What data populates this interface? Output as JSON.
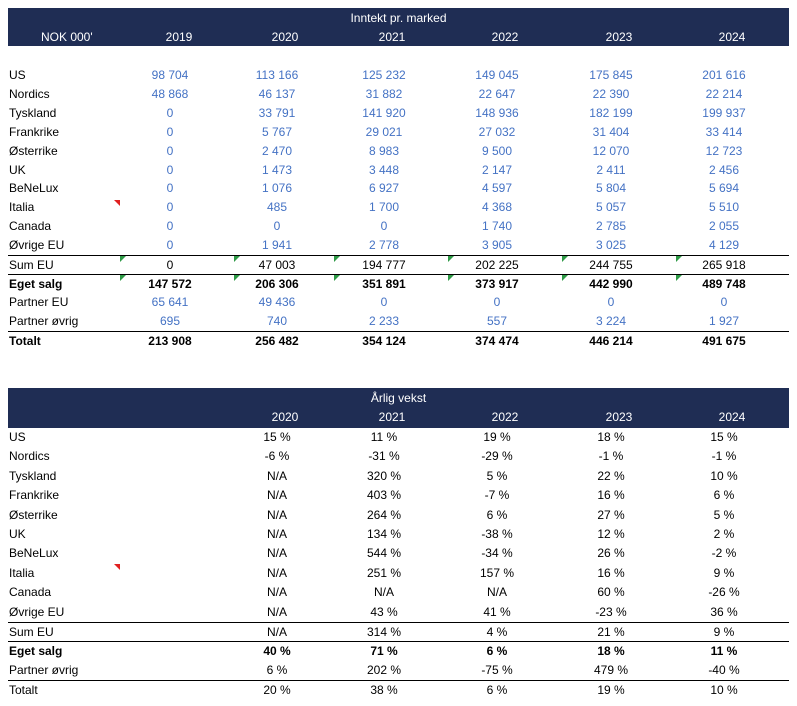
{
  "table1": {
    "title": "Inntekt pr. marked",
    "corner": "NOK 000'",
    "years": [
      "2019",
      "2020",
      "2021",
      "2022",
      "2023",
      "2024"
    ],
    "rows": [
      {
        "label": "US",
        "values": [
          "98 704",
          "113 166",
          "125 232",
          "149 045",
          "175 845",
          "201 616"
        ],
        "style": "blue"
      },
      {
        "label": "Nordics",
        "values": [
          "48 868",
          "46 137",
          "31 882",
          "22 647",
          "22 390",
          "22 214"
        ],
        "style": "blue"
      },
      {
        "label": "Tyskland",
        "values": [
          "0",
          "33 791",
          "141 920",
          "148 936",
          "182 199",
          "199 937"
        ],
        "style": "blue"
      },
      {
        "label": "Frankrike",
        "values": [
          "0",
          "5 767",
          "29 021",
          "27 032",
          "31 404",
          "33 414"
        ],
        "style": "blue"
      },
      {
        "label": "Østerrike",
        "values": [
          "0",
          "2 470",
          "8 983",
          "9 500",
          "12 070",
          "12 723"
        ],
        "style": "blue"
      },
      {
        "label": "UK",
        "values": [
          "0",
          "1 473",
          "3 448",
          "2 147",
          "2 411",
          "2 456"
        ],
        "style": "blue"
      },
      {
        "label": "BeNeLux",
        "values": [
          "0",
          "1 076",
          "6 927",
          "4 597",
          "5 804",
          "5 694"
        ],
        "style": "blue"
      },
      {
        "label": "Italia",
        "values": [
          "0",
          "485",
          "1 700",
          "4 368",
          "5 057",
          "5 510"
        ],
        "style": "blue"
      },
      {
        "label": "Canada",
        "values": [
          "0",
          "0",
          "0",
          "1 740",
          "2 785",
          "2 055"
        ],
        "style": "blue"
      },
      {
        "label": "Øvrige EU",
        "values": [
          "0",
          "1 941",
          "2 778",
          "3 905",
          "3 025",
          "4 129"
        ],
        "style": "blue"
      },
      {
        "label": "Sum EU",
        "values": [
          "0",
          "47 003",
          "194 777",
          "202 225",
          "244 755",
          "265 918"
        ],
        "style": "plain"
      },
      {
        "label": "Eget salg",
        "values": [
          "147 572",
          "206 306",
          "351 891",
          "373 917",
          "442 990",
          "489 748"
        ],
        "style": "bold"
      },
      {
        "label": "Partner EU",
        "values": [
          "65 641",
          "49 436",
          "0",
          "0",
          "0",
          "0"
        ],
        "style": "blue"
      },
      {
        "label": "Partner øvrig",
        "values": [
          "695",
          "740",
          "2 233",
          "557",
          "3 224",
          "1 927"
        ],
        "style": "blue"
      },
      {
        "label": "Totalt",
        "values": [
          "213 908",
          "256 482",
          "354 124",
          "374 474",
          "446 214",
          "491 675"
        ],
        "style": "bold"
      }
    ]
  },
  "table2": {
    "title": "Årlig vekst",
    "years": [
      "2020",
      "2021",
      "2022",
      "2023",
      "2024"
    ],
    "rows": [
      {
        "label": "US",
        "values": [
          "15 %",
          "11 %",
          "19 %",
          "18 %",
          "15 %"
        ],
        "style": "plain"
      },
      {
        "label": "Nordics",
        "values": [
          "-6 %",
          "-31 %",
          "-29 %",
          "-1 %",
          "-1 %"
        ],
        "style": "plain"
      },
      {
        "label": "Tyskland",
        "values": [
          "N/A",
          "320 %",
          "5 %",
          "22 %",
          "10 %"
        ],
        "style": "plain"
      },
      {
        "label": "Frankrike",
        "values": [
          "N/A",
          "403 %",
          "-7 %",
          "16 %",
          "6 %"
        ],
        "style": "plain"
      },
      {
        "label": "Østerrike",
        "values": [
          "N/A",
          "264 %",
          "6 %",
          "27 %",
          "5 %"
        ],
        "style": "plain"
      },
      {
        "label": "UK",
        "values": [
          "N/A",
          "134 %",
          "-38 %",
          "12 %",
          "2 %"
        ],
        "style": "plain"
      },
      {
        "label": "BeNeLux",
        "values": [
          "N/A",
          "544 %",
          "-34 %",
          "26 %",
          "-2 %"
        ],
        "style": "plain"
      },
      {
        "label": "Italia",
        "values": [
          "N/A",
          "251 %",
          "157 %",
          "16 %",
          "9 %"
        ],
        "style": "plain"
      },
      {
        "label": "Canada",
        "values": [
          "N/A",
          "N/A",
          "N/A",
          "60 %",
          "-26 %"
        ],
        "style": "plain"
      },
      {
        "label": "Øvrige EU",
        "values": [
          "N/A",
          "43 %",
          "41 %",
          "-23 %",
          "36 %"
        ],
        "style": "plain"
      },
      {
        "label": "Sum EU",
        "values": [
          "N/A",
          "314 %",
          "4 %",
          "21 %",
          "9 %"
        ],
        "style": "plain"
      },
      {
        "label": "Eget salg",
        "values": [
          "40 %",
          "71 %",
          "6 %",
          "18 %",
          "11 %"
        ],
        "style": "bold"
      },
      {
        "label": "Partner øvrig",
        "values": [
          "6 %",
          "202 %",
          "-75 %",
          "479 %",
          "-40 %"
        ],
        "style": "plain"
      },
      {
        "label": "Totalt",
        "values": [
          "20 %",
          "38 %",
          "6 %",
          "19 %",
          "10 %"
        ],
        "style": "plain"
      }
    ]
  },
  "colors": {
    "header_bg": "#1f2d54",
    "input_blue": "#4472c4",
    "comment_red": "#e02020",
    "formula_green": "#2e9a46"
  }
}
